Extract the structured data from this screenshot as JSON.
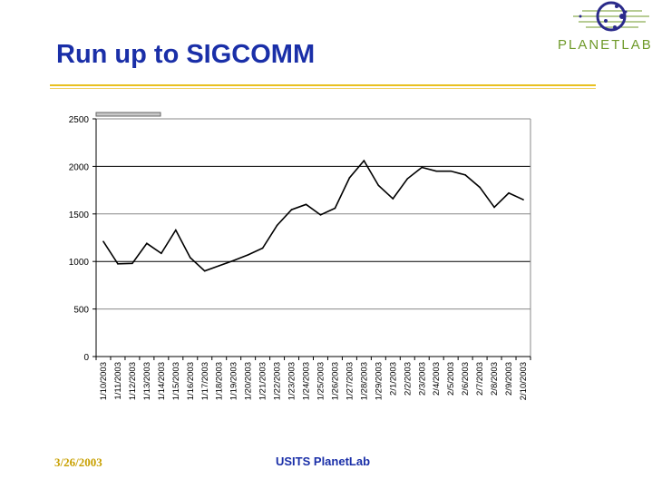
{
  "slide": {
    "title": "Run up to SIGCOMM",
    "footer_date": "3/26/2003",
    "footer_text": "USITS PlanetLab",
    "logo_text": "PLANETLAB"
  },
  "colors": {
    "title": "#1a2fa8",
    "rule": "#e8c020",
    "logo_green": "#6f9a2a",
    "logo_blue": "#2a2a8a"
  },
  "chart_data": {
    "type": "line",
    "categories": [
      "1/10/2003",
      "1/11/2003",
      "1/12/2003",
      "1/13/2003",
      "1/14/2003",
      "1/15/2003",
      "1/16/2003",
      "1/17/2003",
      "1/18/2003",
      "1/19/2003",
      "1/20/2003",
      "1/21/2003",
      "1/22/2003",
      "1/23/2003",
      "1/24/2003",
      "1/25/2003",
      "1/26/2003",
      "1/27/2003",
      "1/28/2003",
      "1/29/2003",
      "2/1/2003",
      "2/2/2003",
      "2/3/2003",
      "2/4/2003",
      "2/5/2003",
      "2/6/2003",
      "2/7/2003",
      "2/8/2003",
      "2/9/2003",
      "2/10/2003"
    ],
    "values": [
      1210,
      975,
      980,
      1190,
      1085,
      1330,
      1040,
      900,
      955,
      1010,
      1070,
      1140,
      1380,
      1545,
      1600,
      1490,
      1560,
      1880,
      2060,
      1800,
      1660,
      1870,
      1990,
      1950,
      1950,
      1910,
      1780,
      1570,
      1720,
      1650
    ],
    "ylim": [
      0,
      2500
    ],
    "yticks": [
      0,
      500,
      1000,
      1500,
      2000,
      2500
    ],
    "grid": true,
    "line_color": "#000000"
  }
}
